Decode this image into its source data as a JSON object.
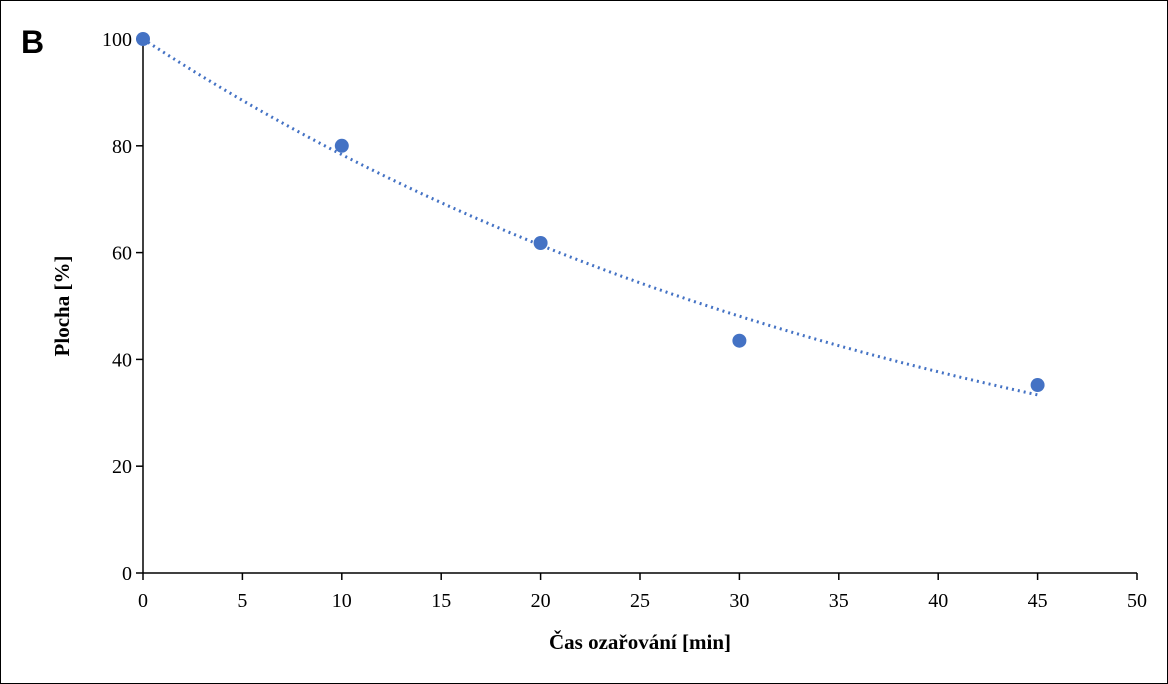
{
  "chart_data": {
    "type": "scatter",
    "panel_label": "B",
    "title": "",
    "xlabel": "Čas ozařování [min]",
    "ylabel": "Plocha [%]",
    "xlim": [
      0,
      50
    ],
    "ylim": [
      0,
      100
    ],
    "x_ticks": [
      0,
      5,
      10,
      15,
      20,
      25,
      30,
      35,
      40,
      45,
      50
    ],
    "y_ticks": [
      0,
      20,
      40,
      60,
      80,
      100
    ],
    "grid": false,
    "legend": "none",
    "series": [
      {
        "x": [
          0,
          10,
          20,
          30,
          45
        ],
        "y": [
          100,
          80,
          61.8,
          43.5,
          35.2
        ],
        "color": "#4472C4",
        "marker": "circle"
      }
    ],
    "trendline": {
      "type": "exponential",
      "style": "dotted",
      "color": "#4472C4",
      "x_range": [
        0,
        45
      ],
      "a": 100,
      "b": -0.0244
    }
  }
}
